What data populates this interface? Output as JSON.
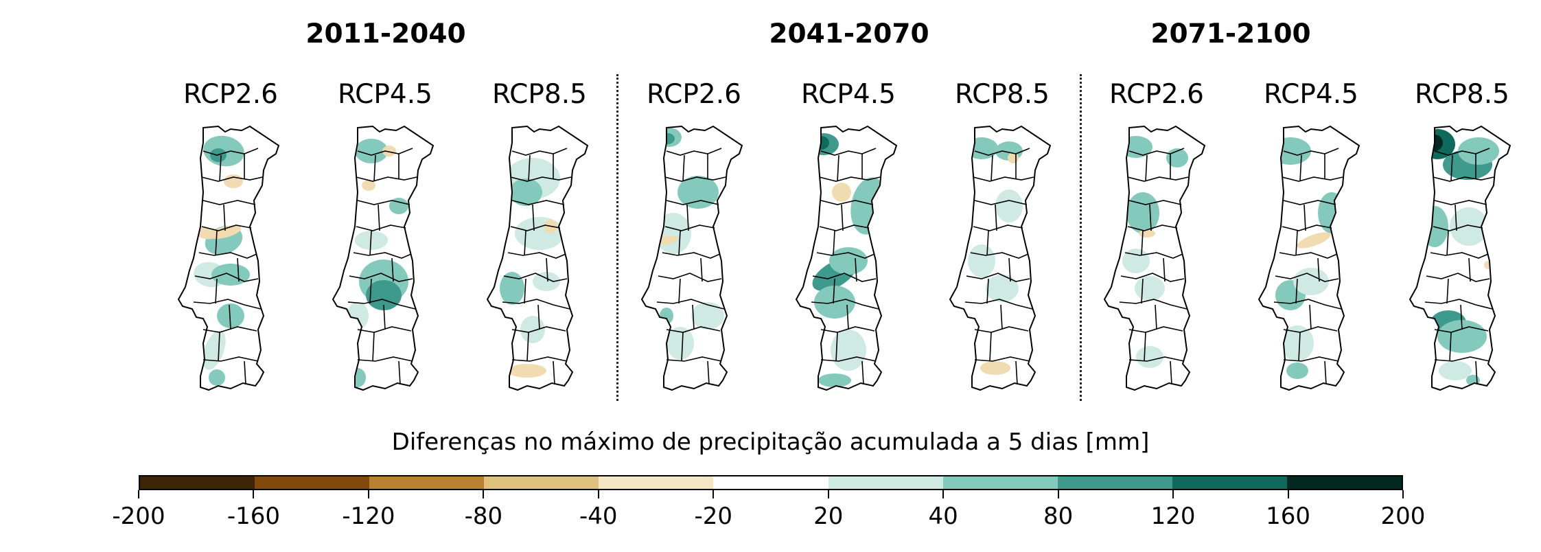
{
  "periods": [
    {
      "label": "2011-2040",
      "scenarios": [
        "RCP2.6",
        "RCP4.5",
        "RCP8.5"
      ]
    },
    {
      "label": "2041-2070",
      "scenarios": [
        "RCP2.6",
        "RCP4.5",
        "RCP8.5"
      ]
    },
    {
      "label": "2071-2100",
      "scenarios": [
        "RCP2.6",
        "RCP4.5",
        "RCP8.5"
      ]
    }
  ],
  "colorbar": {
    "title": "Diferenças no máximo de precipitação acumulada a 5 dias [mm]",
    "ticks": [
      "-200",
      "-160",
      "-120",
      "-80",
      "-40",
      "-20",
      "20",
      "40",
      "80",
      "120",
      "160",
      "200"
    ],
    "colors": [
      "#3d2404",
      "#7f4a0b",
      "#b8802f",
      "#dfc17f",
      "#f5e7c4",
      "#ffffff",
      "#cfeae3",
      "#83cabd",
      "#3f9a8e",
      "#0d6a5c",
      "#022820"
    ]
  },
  "map": {
    "border_color": "#000000",
    "dry_color": "#f0dcb0",
    "wet_colors": [
      "#cfeae3",
      "#83cabd",
      "#3f9a8e",
      "#0d6a5c",
      "#022820"
    ]
  }
}
